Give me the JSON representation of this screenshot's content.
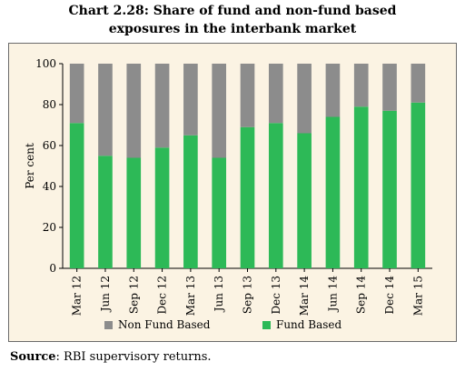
{
  "title_line1": "Chart 2.28: Share of fund and non-fund based",
  "title_line2": "exposures in the interbank market",
  "source_label": "Source",
  "source_text": ": RBI supervisory returns.",
  "chart_data": {
    "type": "bar",
    "stacked": true,
    "categories": [
      "Mar 12",
      "Jun 12",
      "Sep 12",
      "Dec 12",
      "Mar 13",
      "Jun 13",
      "Sep 13",
      "Dec 13",
      "Mar 14",
      "Jun 14",
      "Sep 14",
      "Dec 14",
      "Mar 15"
    ],
    "series": [
      {
        "name": "Fund Based",
        "color": "#2db957",
        "values": [
          71,
          55,
          54,
          59,
          65,
          54,
          69,
          71,
          66,
          74,
          79,
          77,
          81
        ]
      },
      {
        "name": "Non Fund Based",
        "color": "#8c8c8c",
        "values": [
          29,
          45,
          46,
          41,
          35,
          46,
          31,
          29,
          34,
          26,
          21,
          23,
          19
        ]
      }
    ],
    "ylabel": "Per cent",
    "ylim": [
      0,
      100
    ],
    "yticks": [
      0,
      20,
      40,
      60,
      80,
      100
    ],
    "grid": false,
    "legend_position": "bottom"
  }
}
